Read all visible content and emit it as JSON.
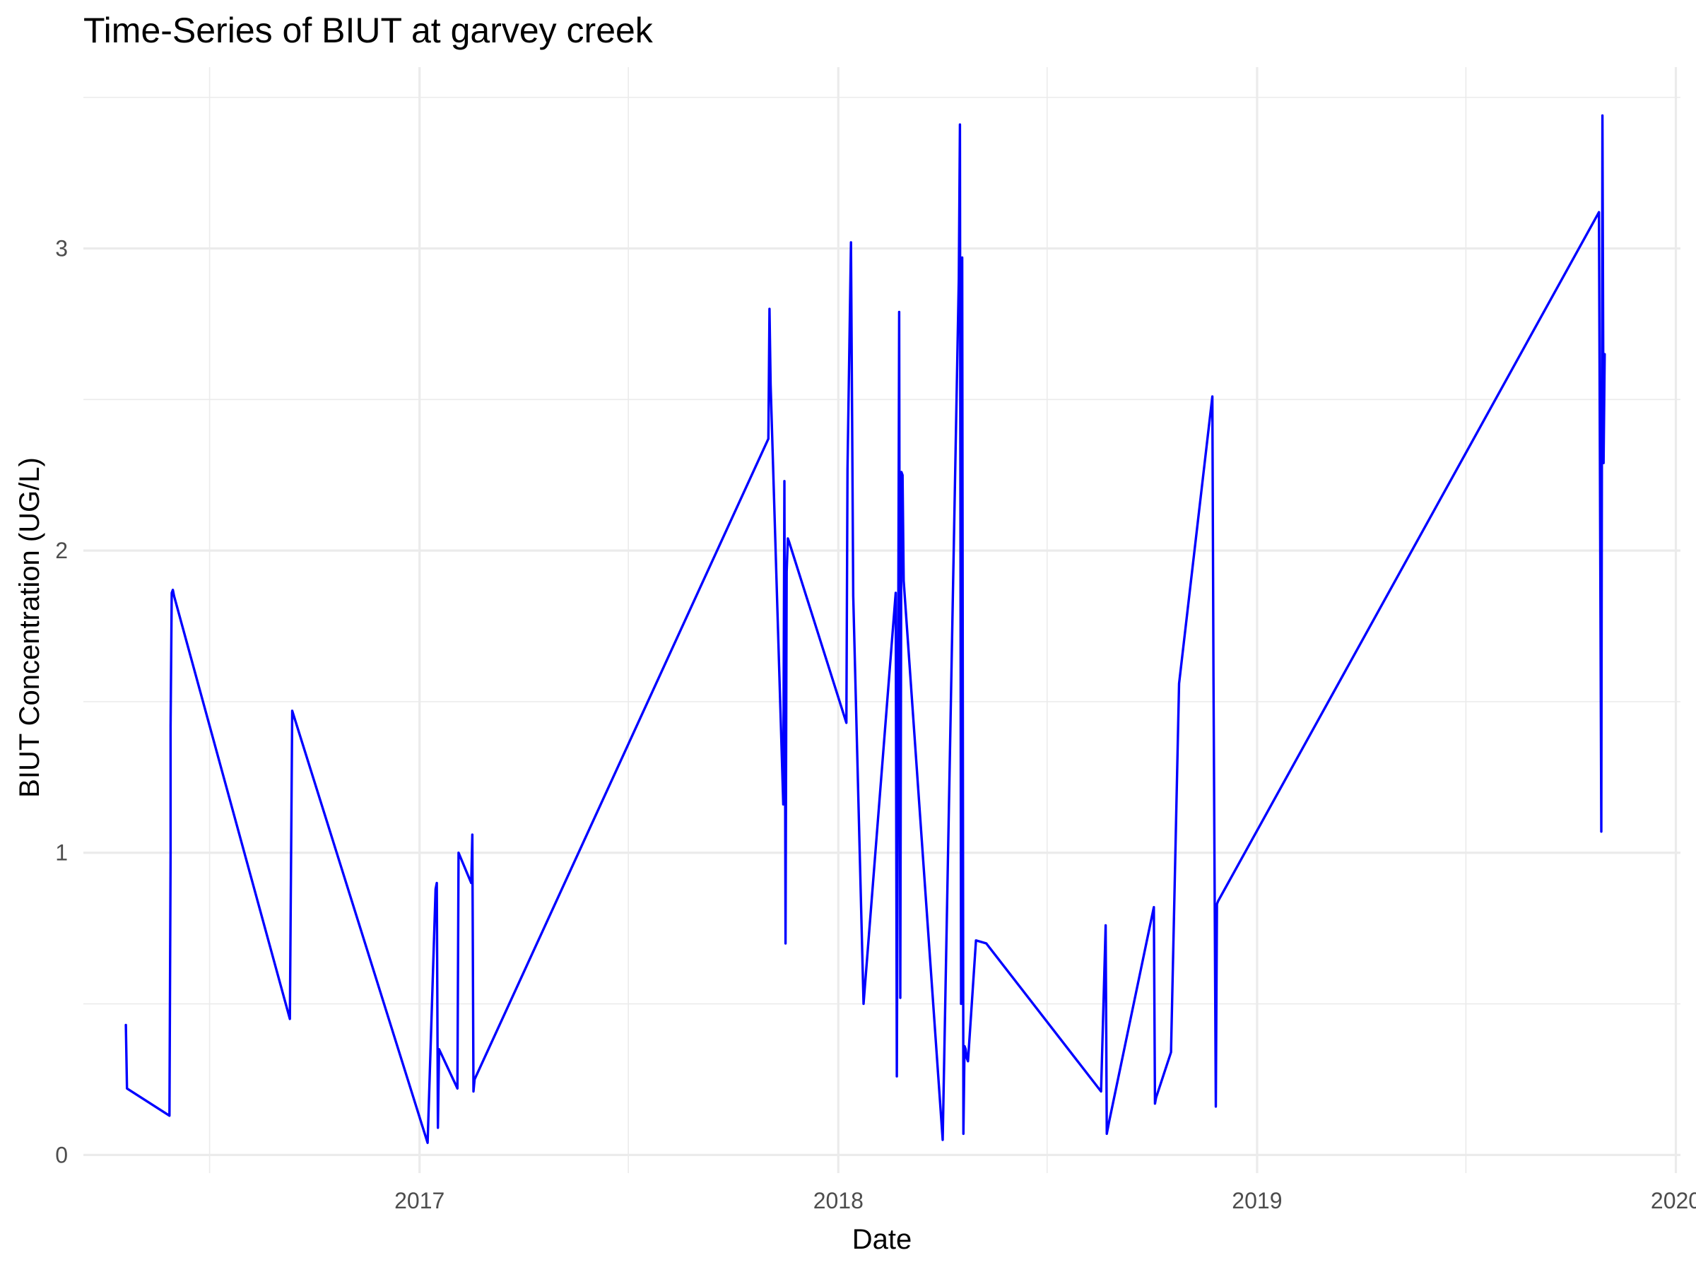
{
  "chart_data": {
    "type": "line",
    "title": "Time-Series of BIUT at garvey creek",
    "xlabel": "Date",
    "ylabel": "BIUT Concentration (UG/L)",
    "x_ticks": [
      "2017",
      "2018",
      "2019",
      "2020"
    ],
    "y_ticks": [
      "0",
      "1",
      "2",
      "3"
    ],
    "xlim": [
      "2016-03-14",
      "2020-01-05"
    ],
    "ylim": [
      -0.06,
      3.6
    ],
    "grid": true,
    "legend": "none",
    "colors": {
      "series": "#0000ff",
      "grid": "#ebebeb",
      "tick_text": "#4d4d4d"
    },
    "series": [
      {
        "x": [
          "2016-04-20",
          "2016-04-21",
          "2016-05-28",
          "2016-05-29",
          "2016-05-29",
          "2016-05-30",
          "2016-05-31",
          "2016-06-01",
          "2016-09-10",
          "2016-09-11",
          "2016-09-12",
          "2017-01-08",
          "2017-01-15",
          "2017-01-16",
          "2017-01-17",
          "2017-01-18",
          "2017-02-03",
          "2017-02-04",
          "2017-02-15",
          "2017-02-16",
          "2017-02-17",
          "2017-02-18",
          "2017-11-01",
          "2017-11-02",
          "2017-11-03",
          "2017-11-14",
          "2017-11-15",
          "2017-11-16",
          "2017-11-17",
          "2017-11-18",
          "2017-11-19",
          "2018-01-08",
          "2018-01-09",
          "2018-01-12",
          "2018-01-13",
          "2018-01-14",
          "2018-01-23",
          "2018-02-20",
          "2018-02-21",
          "2018-02-22",
          "2018-02-23",
          "2018-02-24",
          "2018-02-25",
          "2018-02-26",
          "2018-02-27",
          "2018-04-02",
          "2018-04-16",
          "2018-04-17",
          "2018-04-18",
          "2018-04-19",
          "2018-04-20",
          "2018-04-21",
          "2018-04-22",
          "2018-04-23",
          "2018-04-24",
          "2018-05-01",
          "2018-05-10",
          "2018-08-18",
          "2018-08-22",
          "2018-08-23",
          "2018-08-25",
          "2018-10-03",
          "2018-10-04",
          "2018-10-05",
          "2018-10-18",
          "2018-10-25",
          "2018-11-23",
          "2018-11-24",
          "2018-11-26",
          "2018-11-27",
          "2018-11-28",
          "2019-10-26",
          "2019-10-28",
          "2019-10-29",
          "2019-10-30",
          "2019-10-31"
        ],
        "y": [
          0.43,
          0.22,
          0.13,
          1.0,
          1.42,
          1.86,
          1.87,
          1.85,
          0.45,
          0.98,
          1.47,
          0.04,
          0.88,
          0.9,
          0.09,
          0.35,
          0.22,
          1.0,
          0.9,
          1.06,
          0.21,
          0.25,
          2.37,
          2.8,
          2.55,
          1.16,
          2.23,
          0.7,
          1.93,
          2.04,
          2.03,
          1.43,
          2.27,
          3.02,
          2.45,
          1.85,
          0.5,
          1.86,
          0.26,
          1.4,
          2.79,
          0.52,
          2.26,
          2.25,
          1.9,
          0.05,
          2.9,
          3.41,
          0.5,
          2.97,
          0.07,
          0.36,
          0.35,
          0.32,
          0.31,
          0.71,
          0.7,
          0.21,
          0.76,
          0.07,
          0.11,
          0.82,
          0.17,
          0.19,
          0.34,
          1.56,
          2.51,
          1.58,
          0.16,
          0.83,
          0.84,
          3.12,
          1.07,
          3.44,
          2.29,
          2.65
        ]
      }
    ]
  }
}
